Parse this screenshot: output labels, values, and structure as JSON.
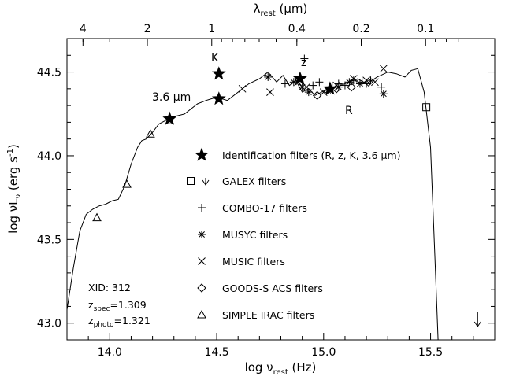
{
  "chart_data": {
    "type": "scatter",
    "xlabel": "log ν",
    "xlabel_sub": "rest",
    "xlabel_unit": " (Hz)",
    "ylabel": "log νL",
    "ylabel_sub": "ν",
    "ylabel_unit": " (erg s",
    "ylabel_sup": "-1",
    "ylabel_close": ")",
    "top_axis_label": "λ",
    "top_axis_sub": "rest",
    "top_axis_unit": " (μm)",
    "xlim": [
      13.8,
      15.8
    ],
    "ylim": [
      42.9,
      44.7
    ],
    "grid": false,
    "legend_placement": "center-right",
    "x_ticks": [
      14.0,
      14.5,
      15.0,
      15.5
    ],
    "x_tick_labels": [
      "14.0",
      "14.5",
      "15.0",
      "15.5"
    ],
    "y_ticks": [
      43.0,
      43.5,
      44.0,
      44.5
    ],
    "y_tick_labels": [
      "43.0",
      "43.5",
      "44.0",
      "44.5"
    ],
    "top_ticks": [
      4,
      2,
      1,
      0.4,
      0.2,
      0.1
    ],
    "top_tick_labels": [
      "4",
      "2",
      "1",
      "0.4",
      "0.2",
      "0.1"
    ],
    "annotations": {
      "xid": "XID: 312",
      "zspec_base": "z",
      "zspec_sub": "spec",
      "zspec_val": "=1.309",
      "zphoto_base": "z",
      "zphoto_sub": "photo",
      "zphoto_val": "=1.321",
      "label_K": "K",
      "label_z": "z",
      "label_R": "R",
      "label_36": "3.6 μm"
    },
    "legend": [
      {
        "marker": "star",
        "label": "Identification filters (R, z, K, 3.6 μm)"
      },
      {
        "marker": "square-arrow",
        "label": "GALEX filters"
      },
      {
        "marker": "plus",
        "label": "COMBO-17 filters"
      },
      {
        "marker": "asterisk",
        "label": "MUSYC filters"
      },
      {
        "marker": "cross",
        "label": "MUSIC filters"
      },
      {
        "marker": "diamond",
        "label": "GOODS-S ACS filters"
      },
      {
        "marker": "triangle",
        "label": "SIMPLE IRAC filters"
      }
    ],
    "sed_model": {
      "x": [
        13.8,
        13.83,
        13.86,
        13.89,
        13.92,
        13.95,
        13.98,
        14.01,
        14.04,
        14.07,
        14.1,
        14.13,
        14.15,
        14.17,
        14.2,
        14.23,
        14.26,
        14.29,
        14.32,
        14.35,
        14.38,
        14.41,
        14.45,
        14.5,
        14.55,
        14.6,
        14.65,
        14.7,
        14.74,
        14.78,
        14.81,
        14.84,
        14.87,
        14.9,
        14.93,
        14.96,
        14.99,
        15.02,
        15.05,
        15.08,
        15.12,
        15.16,
        15.2,
        15.25,
        15.3,
        15.34,
        15.38,
        15.41,
        15.44,
        15.47,
        15.5,
        15.52,
        15.535
      ],
      "y": [
        43.08,
        43.33,
        43.55,
        43.65,
        43.68,
        43.7,
        43.71,
        43.73,
        43.74,
        43.82,
        43.95,
        44.05,
        44.09,
        44.1,
        44.14,
        44.19,
        44.21,
        44.23,
        44.24,
        44.25,
        44.28,
        44.31,
        44.33,
        44.35,
        44.33,
        44.38,
        44.43,
        44.46,
        44.5,
        44.44,
        44.48,
        44.42,
        44.45,
        44.38,
        44.4,
        44.36,
        44.38,
        44.4,
        44.39,
        44.42,
        44.44,
        44.46,
        44.43,
        44.47,
        44.5,
        44.49,
        44.47,
        44.51,
        44.52,
        44.38,
        44.05,
        43.4,
        42.9
      ]
    },
    "series": [
      {
        "name": "Identification filters (R, z, K, 3.6 μm)",
        "marker": "star",
        "x": [
          14.28,
          14.51,
          14.51,
          14.89,
          15.03
        ],
        "y": [
          44.22,
          44.34,
          44.49,
          44.46,
          44.4
        ]
      },
      {
        "name": "GALEX filters",
        "marker": "square",
        "x": [
          15.48
        ],
        "y": [
          44.29
        ]
      },
      {
        "name": "GALEX filters (upper limit)",
        "marker": "arrow-down",
        "x": [
          15.72
        ],
        "y": [
          42.98
        ]
      },
      {
        "name": "COMBO-17 filters",
        "marker": "plus",
        "x": [
          14.82,
          14.91,
          14.95,
          14.98,
          15.04,
          15.07,
          15.1,
          15.14,
          15.18,
          15.2,
          15.22,
          15.27
        ],
        "y": [
          44.43,
          44.58,
          44.42,
          44.44,
          44.41,
          44.43,
          44.42,
          44.45,
          44.44,
          44.43,
          44.45,
          44.41
        ]
      },
      {
        "name": "MUSYC filters",
        "marker": "asterisk",
        "x": [
          14.74,
          14.86,
          14.9,
          14.93,
          15.02,
          15.07,
          15.12,
          15.17,
          15.28
        ],
        "y": [
          44.47,
          44.44,
          44.41,
          44.38,
          44.39,
          44.41,
          44.44,
          44.43,
          44.37
        ]
      },
      {
        "name": "MUSIC filters",
        "marker": "cross",
        "x": [
          14.62,
          14.75,
          14.88,
          14.92,
          15.0,
          15.06,
          15.14,
          15.2,
          15.24,
          15.28
        ],
        "y": [
          44.4,
          44.38,
          44.44,
          44.41,
          44.38,
          44.42,
          44.46,
          44.45,
          44.44,
          44.52
        ]
      },
      {
        "name": "GOODS-S ACS filters",
        "marker": "diamond",
        "x": [
          14.97,
          15.06,
          15.13,
          15.21
        ],
        "y": [
          44.36,
          44.4,
          44.41,
          44.44
        ]
      },
      {
        "name": "SIMPLE IRAC filters",
        "marker": "triangle",
        "x": [
          13.94,
          14.08,
          14.19,
          14.28
        ],
        "y": [
          43.63,
          43.83,
          44.13,
          44.21
        ]
      }
    ]
  }
}
